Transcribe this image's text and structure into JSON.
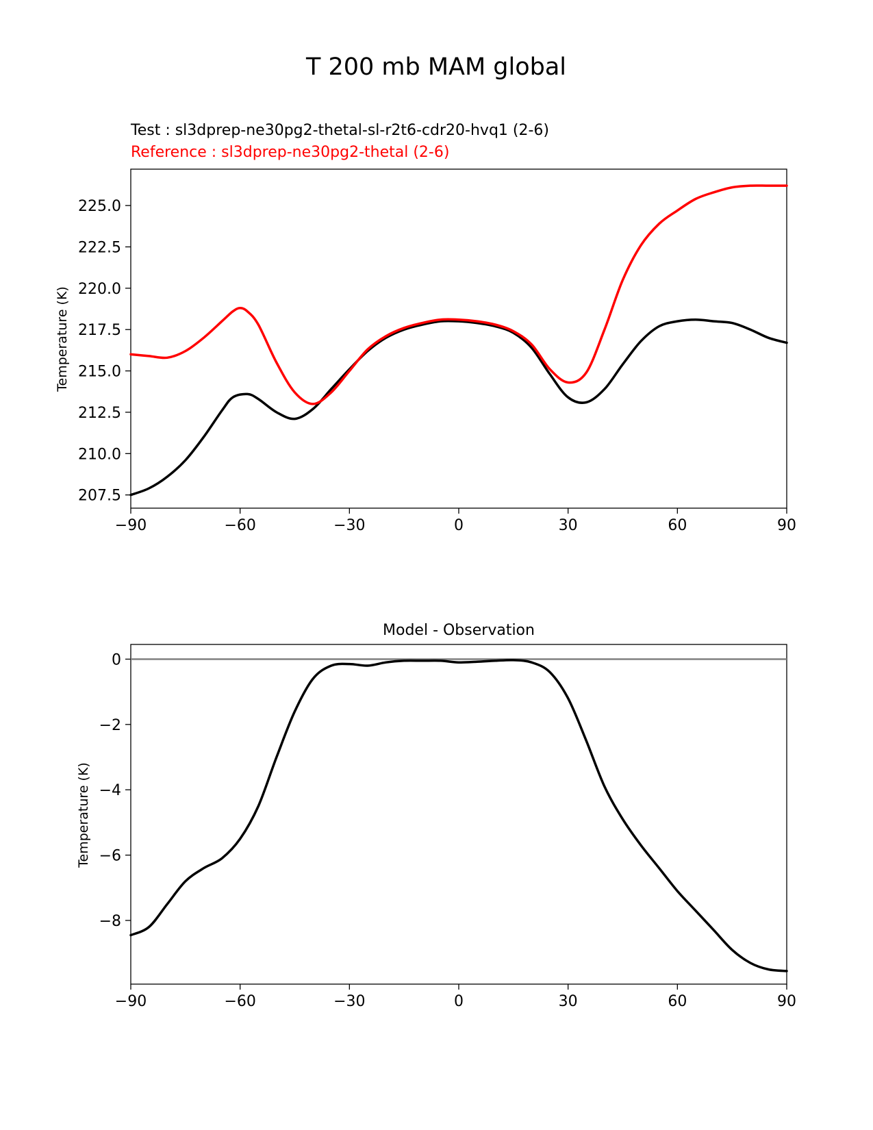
{
  "figure": {
    "title": "T 200 mb MAM global"
  },
  "chart_data": [
    {
      "type": "line",
      "test_label": "Test : sl3dprep-ne30pg2-thetal-sl-r2t6-cdr20-hvq1 (2-6)",
      "reference_label": "Reference : sl3dprep-ne30pg2-thetal (2-6)",
      "title": "",
      "xlabel": "",
      "ylabel": "Temperature (K)",
      "xlim": [
        -90,
        90
      ],
      "ylim": [
        206.7,
        227.2
      ],
      "xticks": [
        -90,
        -60,
        -30,
        0,
        30,
        60,
        90
      ],
      "xtick_labels": [
        "−90",
        "−60",
        "−30",
        "0",
        "30",
        "60",
        "90"
      ],
      "yticks": [
        207.5,
        210.0,
        212.5,
        215.0,
        217.5,
        220.0,
        222.5,
        225.0
      ],
      "ytick_labels": [
        "207.5",
        "210.0",
        "212.5",
        "215.0",
        "217.5",
        "220.0",
        "222.5",
        "225.0"
      ],
      "series": [
        {
          "name": "Test",
          "color": "#000000",
          "x": [
            -90,
            -85,
            -80,
            -75,
            -70,
            -65,
            -62,
            -58,
            -55,
            -50,
            -45,
            -40,
            -35,
            -30,
            -25,
            -20,
            -15,
            -10,
            -5,
            0,
            5,
            10,
            15,
            20,
            25,
            30,
            35,
            40,
            45,
            50,
            55,
            60,
            65,
            70,
            75,
            80,
            85,
            90
          ],
          "values": [
            207.5,
            207.9,
            208.6,
            209.6,
            211.0,
            212.6,
            213.4,
            213.6,
            213.3,
            212.5,
            212.1,
            212.7,
            213.9,
            215.1,
            216.2,
            217.0,
            217.5,
            217.8,
            218.0,
            218.0,
            217.9,
            217.7,
            217.3,
            216.4,
            214.8,
            213.4,
            213.1,
            213.9,
            215.4,
            216.8,
            217.7,
            218.0,
            218.1,
            218.0,
            217.9,
            217.5,
            217.0,
            216.7
          ]
        },
        {
          "name": "Reference",
          "color": "#ff0000",
          "x": [
            -90,
            -85,
            -80,
            -75,
            -70,
            -65,
            -62,
            -60,
            -58,
            -55,
            -50,
            -45,
            -40,
            -35,
            -30,
            -25,
            -20,
            -15,
            -10,
            -5,
            0,
            5,
            10,
            15,
            20,
            25,
            30,
            35,
            40,
            45,
            50,
            55,
            60,
            65,
            70,
            75,
            80,
            85,
            90
          ],
          "values": [
            216.0,
            215.9,
            215.8,
            216.2,
            217.0,
            218.0,
            218.6,
            218.8,
            218.6,
            217.8,
            215.5,
            213.7,
            213.0,
            213.7,
            215.0,
            216.3,
            217.1,
            217.6,
            217.9,
            218.1,
            218.1,
            218.0,
            217.8,
            217.4,
            216.6,
            215.1,
            214.3,
            214.9,
            217.5,
            220.5,
            222.6,
            223.9,
            224.7,
            225.4,
            225.8,
            226.1,
            226.2,
            226.2,
            226.2
          ]
        }
      ]
    },
    {
      "type": "line",
      "title": "Model - Observation",
      "xlabel": "",
      "ylabel": "Temperature (K)",
      "xlim": [
        -90,
        90
      ],
      "ylim": [
        -9.95,
        0.45
      ],
      "xticks": [
        -90,
        -60,
        -30,
        0,
        30,
        60,
        90
      ],
      "xtick_labels": [
        "−90",
        "−60",
        "−30",
        "0",
        "30",
        "60",
        "90"
      ],
      "yticks": [
        -8,
        -6,
        -4,
        -2,
        0
      ],
      "ytick_labels": [
        "−8",
        "−6",
        "−4",
        "−2",
        "0"
      ],
      "zero_line": {
        "y": 0,
        "color": "#808080"
      },
      "series": [
        {
          "name": "Model - Observation",
          "color": "#000000",
          "x": [
            -90,
            -85,
            -80,
            -75,
            -70,
            -65,
            -60,
            -55,
            -50,
            -45,
            -40,
            -35,
            -30,
            -25,
            -20,
            -15,
            -10,
            -5,
            0,
            5,
            10,
            15,
            20,
            25,
            30,
            35,
            40,
            45,
            50,
            55,
            60,
            65,
            70,
            75,
            80,
            85,
            90
          ],
          "values": [
            -8.45,
            -8.2,
            -7.5,
            -6.8,
            -6.4,
            -6.1,
            -5.5,
            -4.5,
            -3.0,
            -1.6,
            -0.6,
            -0.2,
            -0.15,
            -0.2,
            -0.1,
            -0.05,
            -0.05,
            -0.05,
            -0.1,
            -0.08,
            -0.05,
            -0.03,
            -0.1,
            -0.4,
            -1.2,
            -2.5,
            -3.9,
            -4.9,
            -5.7,
            -6.4,
            -7.1,
            -7.7,
            -8.3,
            -8.9,
            -9.3,
            -9.5,
            -9.55
          ]
        }
      ]
    }
  ]
}
